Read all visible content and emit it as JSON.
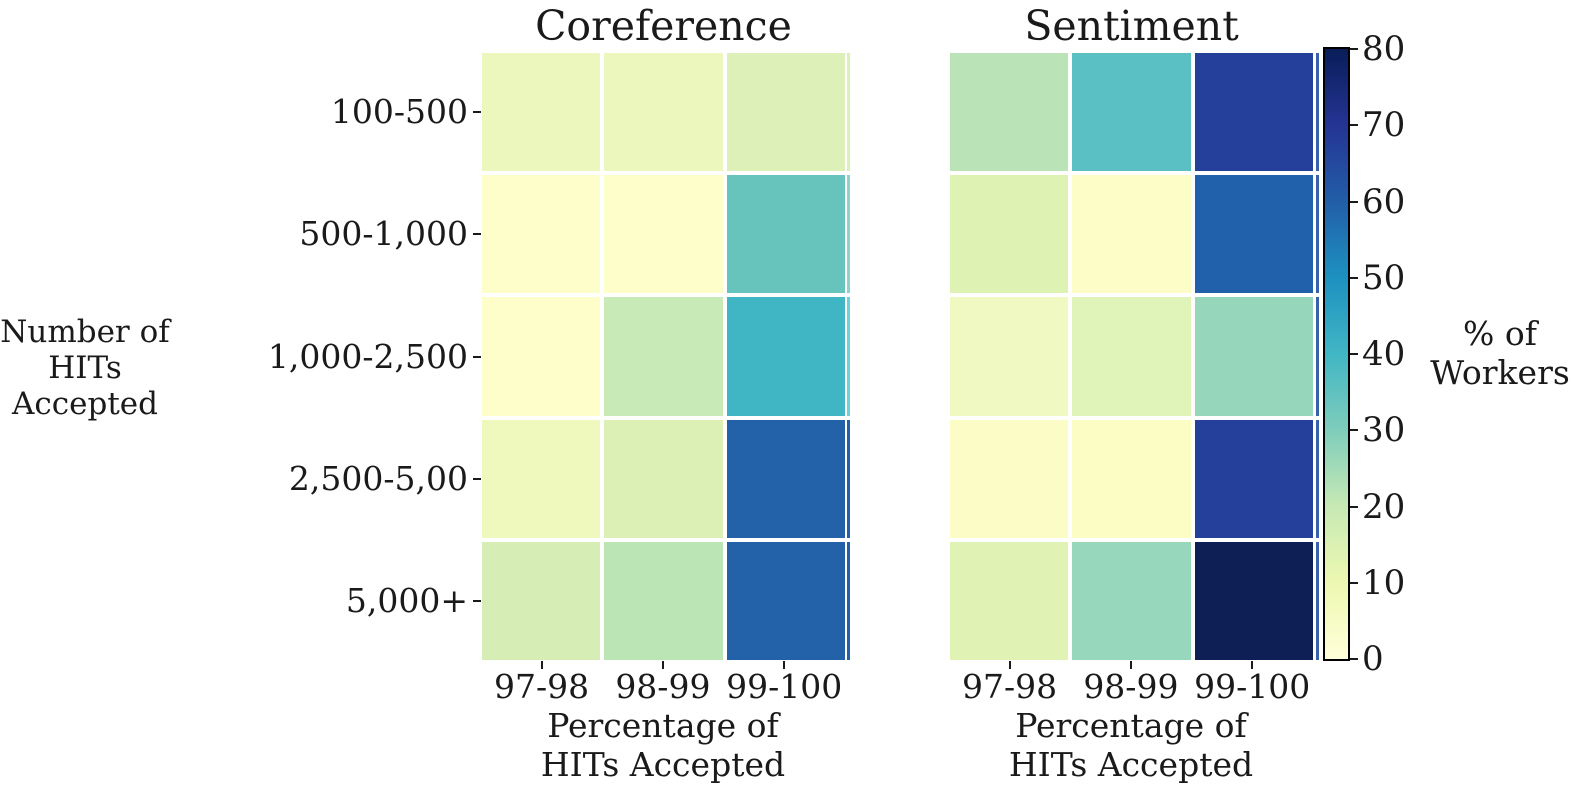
{
  "figure": {
    "background": "#ffffff",
    "text_color": "#1a1a1a"
  },
  "chart_data": {
    "type": "heatmap",
    "x_categories": [
      "97-98",
      "98-99",
      "99-100"
    ],
    "y_categories": [
      "100-500",
      "500-1,000",
      "1,000-2,500",
      "2,500-5,00",
      "5,000+"
    ],
    "x_axis_label_lines": [
      "Percentage of",
      "HITs Accepted"
    ],
    "y_axis_label_lines": [
      "Number of",
      "HITs Accepted"
    ],
    "value_unit": "% of Workers",
    "grid": false,
    "panels": [
      {
        "title": "Coreference",
        "values": [
          [
            10,
            10,
            13
          ],
          [
            2,
            2,
            34
          ],
          [
            2,
            20,
            41
          ],
          [
            9,
            14,
            60
          ],
          [
            15,
            21,
            60
          ]
        ],
        "cell_colors": [
          [
            "#ecf7bd",
            "#ecf7bd",
            "#dcf0b8"
          ],
          [
            "#fdfec9",
            "#fdfec9",
            "#67c4bd"
          ],
          [
            "#fdfec9",
            "#c8eab6",
            "#40b5c4"
          ],
          [
            "#eff8bd",
            "#dcf0b5",
            "#2361a9"
          ],
          [
            "#d6eeb5",
            "#bce5b6",
            "#2361a9"
          ]
        ],
        "edge_strip_colors": [
          "#dcf0b8",
          "#8ed2cb",
          "#6fd0dd",
          "#2361a9",
          "#2361a9"
        ]
      },
      {
        "title": "Sentiment",
        "values": [
          [
            22,
            36,
            66
          ],
          [
            13,
            2,
            60
          ],
          [
            7,
            12,
            26
          ],
          [
            2,
            2,
            66
          ],
          [
            12,
            26,
            77
          ]
        ],
        "cell_colors": [
          [
            "#bae4b8",
            "#5ac0c3",
            "#24409a"
          ],
          [
            "#def2b3",
            "#fdfdc8",
            "#2160ab"
          ],
          [
            "#f0f9c2",
            "#e0f3b8",
            "#96d6bb"
          ],
          [
            "#fcfdc6",
            "#fcfdc5",
            "#24409a"
          ],
          [
            "#e0f3b4",
            "#97d7bb",
            "#0e1f55"
          ]
        ],
        "edge_strip_colors": [
          "#3a62aa",
          "#3a62aa",
          "#3a62aa",
          "#3a62aa",
          "#3a62aa"
        ]
      }
    ],
    "colorbar": {
      "label_lines": [
        "% of",
        "Workers"
      ],
      "min": 0,
      "max": 80,
      "ticks": [
        0,
        10,
        20,
        30,
        40,
        50,
        60,
        70,
        80
      ],
      "colormap_name": "YlGnBu",
      "gradient_stops_bottom_to_top": [
        "#ffffd9",
        "#edf8b1",
        "#c7e9b4",
        "#7fcdbb",
        "#41b6c4",
        "#1d91c0",
        "#225ea8",
        "#253494",
        "#081d58"
      ]
    }
  }
}
